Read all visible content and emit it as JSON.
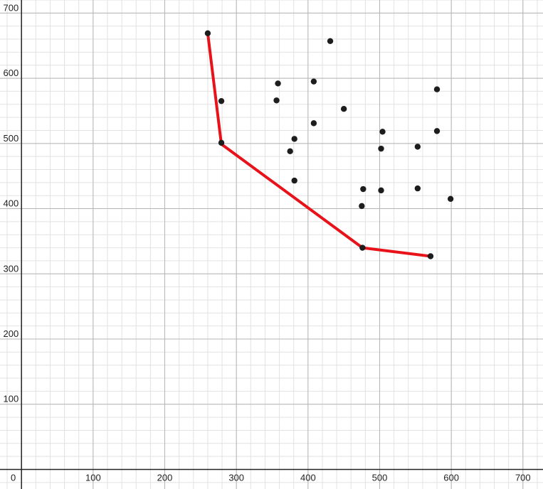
{
  "chart_data": {
    "type": "scatter",
    "title": "",
    "xlabel": "",
    "ylabel": "",
    "xlim": [
      -30,
      728
    ],
    "ylim": [
      -30,
      720
    ],
    "x_ticks": [
      0,
      100,
      200,
      300,
      400,
      500,
      600,
      700
    ],
    "y_ticks": [
      100,
      200,
      300,
      400,
      500,
      600,
      700
    ],
    "x_tick_labels": [
      "0",
      "100",
      "200",
      "300",
      "400",
      "500",
      "600",
      "700"
    ],
    "y_tick_labels": [
      "100",
      "200",
      "300",
      "400",
      "500",
      "600",
      "700"
    ],
    "major_grid_step": 100,
    "minor_grid_step": 20,
    "grid": true,
    "colors": {
      "points": "#1d1d1d",
      "line": "#e8121a",
      "major_grid": "#b5b5b5",
      "minor_grid": "#e2e2e2"
    },
    "points": [
      {
        "x": 260,
        "y": 669
      },
      {
        "x": 279,
        "y": 565
      },
      {
        "x": 279,
        "y": 501
      },
      {
        "x": 356,
        "y": 566
      },
      {
        "x": 358,
        "y": 592
      },
      {
        "x": 375,
        "y": 488
      },
      {
        "x": 381,
        "y": 507
      },
      {
        "x": 381,
        "y": 443
      },
      {
        "x": 408,
        "y": 531
      },
      {
        "x": 408,
        "y": 595
      },
      {
        "x": 431,
        "y": 657
      },
      {
        "x": 450,
        "y": 553
      },
      {
        "x": 475,
        "y": 404
      },
      {
        "x": 477,
        "y": 430
      },
      {
        "x": 476,
        "y": 340
      },
      {
        "x": 502,
        "y": 428
      },
      {
        "x": 502,
        "y": 492
      },
      {
        "x": 504,
        "y": 518
      },
      {
        "x": 553,
        "y": 495
      },
      {
        "x": 553,
        "y": 431
      },
      {
        "x": 571,
        "y": 327
      },
      {
        "x": 580,
        "y": 583
      },
      {
        "x": 580,
        "y": 519
      },
      {
        "x": 599,
        "y": 415
      }
    ],
    "frontier": [
      {
        "x": 260,
        "y": 669
      },
      {
        "x": 279,
        "y": 499
      },
      {
        "x": 476,
        "y": 340
      },
      {
        "x": 571,
        "y": 327
      }
    ]
  }
}
